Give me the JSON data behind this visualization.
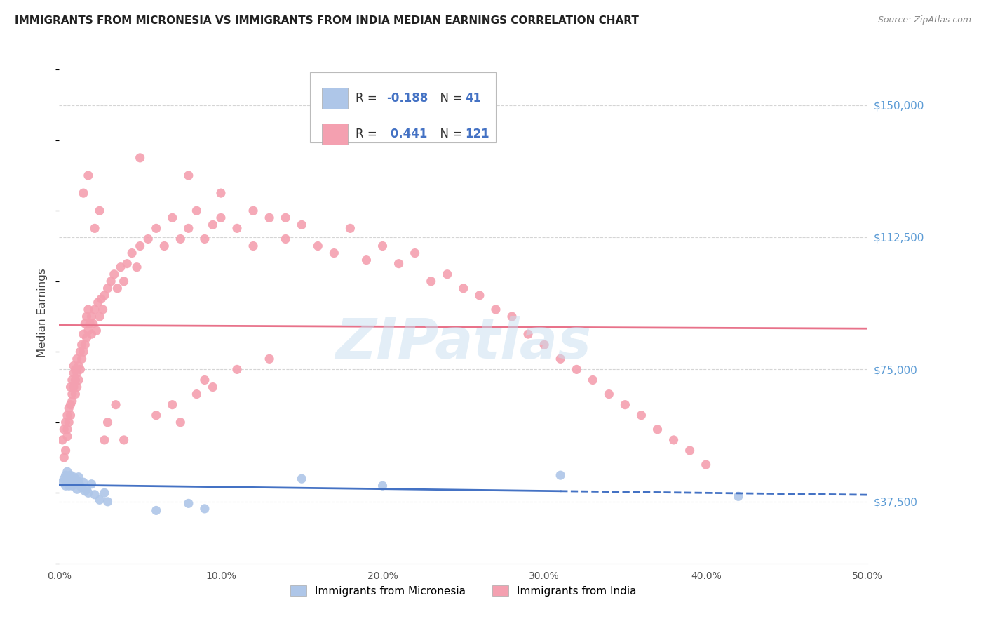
{
  "title": "IMMIGRANTS FROM MICRONESIA VS IMMIGRANTS FROM INDIA MEDIAN EARNINGS CORRELATION CHART",
  "source": "Source: ZipAtlas.com",
  "ylabel": "Median Earnings",
  "xlim": [
    0.0,
    0.5
  ],
  "ylim": [
    20000,
    162000
  ],
  "yticks": [
    37500,
    75000,
    112500,
    150000
  ],
  "ytick_labels": [
    "$37,500",
    "$75,000",
    "$112,500",
    "$150,000"
  ],
  "xticks": [
    0.0,
    0.1,
    0.2,
    0.3,
    0.4,
    0.5
  ],
  "xtick_labels": [
    "0.0%",
    "10.0%",
    "20.0%",
    "30.0%",
    "40.0%",
    "50.0%"
  ],
  "micronesia_R": -0.188,
  "micronesia_N": 41,
  "india_R": 0.441,
  "india_N": 121,
  "micronesia_color": "#aec6e8",
  "india_color": "#f4a0b0",
  "micronesia_line_color": "#4472c4",
  "india_line_color": "#e8728a",
  "background_color": "#ffffff",
  "grid_color": "#d5d5d5",
  "watermark": "ZIPatlas",
  "title_fontsize": 11,
  "axis_label_color": "#5b9bd5",
  "legend_R_color": "#4472c4",
  "micronesia_x": [
    0.002,
    0.003,
    0.004,
    0.004,
    0.005,
    0.005,
    0.006,
    0.006,
    0.006,
    0.007,
    0.007,
    0.007,
    0.008,
    0.008,
    0.008,
    0.009,
    0.009,
    0.01,
    0.01,
    0.011,
    0.011,
    0.012,
    0.012,
    0.013,
    0.014,
    0.015,
    0.016,
    0.017,
    0.018,
    0.02,
    0.022,
    0.025,
    0.028,
    0.03,
    0.06,
    0.08,
    0.09,
    0.15,
    0.2,
    0.31,
    0.42
  ],
  "micronesia_y": [
    43000,
    44000,
    42000,
    45000,
    43500,
    46000,
    42000,
    44000,
    43000,
    45000,
    42500,
    44500,
    43000,
    44000,
    42000,
    44500,
    43000,
    44000,
    42500,
    43500,
    41000,
    43000,
    44500,
    42000,
    41500,
    43000,
    40500,
    41000,
    40000,
    42500,
    39500,
    38000,
    40000,
    37500,
    35000,
    37000,
    35500,
    44000,
    42000,
    45000,
    39000
  ],
  "india_x": [
    0.002,
    0.003,
    0.003,
    0.004,
    0.004,
    0.005,
    0.005,
    0.005,
    0.006,
    0.006,
    0.007,
    0.007,
    0.007,
    0.008,
    0.008,
    0.008,
    0.009,
    0.009,
    0.009,
    0.01,
    0.01,
    0.01,
    0.011,
    0.011,
    0.011,
    0.012,
    0.012,
    0.013,
    0.013,
    0.014,
    0.014,
    0.015,
    0.015,
    0.016,
    0.016,
    0.017,
    0.017,
    0.018,
    0.018,
    0.019,
    0.02,
    0.02,
    0.021,
    0.022,
    0.023,
    0.024,
    0.025,
    0.026,
    0.027,
    0.028,
    0.03,
    0.032,
    0.034,
    0.036,
    0.038,
    0.04,
    0.042,
    0.045,
    0.048,
    0.05,
    0.055,
    0.06,
    0.065,
    0.07,
    0.075,
    0.08,
    0.085,
    0.09,
    0.095,
    0.1,
    0.11,
    0.12,
    0.13,
    0.14,
    0.15,
    0.16,
    0.17,
    0.18,
    0.19,
    0.2,
    0.21,
    0.22,
    0.23,
    0.24,
    0.25,
    0.26,
    0.27,
    0.28,
    0.29,
    0.3,
    0.31,
    0.32,
    0.33,
    0.34,
    0.35,
    0.36,
    0.37,
    0.38,
    0.39,
    0.4,
    0.05,
    0.08,
    0.1,
    0.12,
    0.14,
    0.03,
    0.035,
    0.04,
    0.015,
    0.018,
    0.022,
    0.025,
    0.028,
    0.06,
    0.07,
    0.075,
    0.085,
    0.09,
    0.095,
    0.11,
    0.13
  ],
  "india_y": [
    55000,
    50000,
    58000,
    52000,
    60000,
    56000,
    62000,
    58000,
    64000,
    60000,
    65000,
    62000,
    70000,
    66000,
    72000,
    68000,
    74000,
    70000,
    76000,
    72000,
    68000,
    75000,
    70000,
    74000,
    78000,
    72000,
    76000,
    80000,
    75000,
    82000,
    78000,
    80000,
    85000,
    82000,
    88000,
    84000,
    90000,
    86000,
    92000,
    88000,
    85000,
    90000,
    88000,
    92000,
    86000,
    94000,
    90000,
    95000,
    92000,
    96000,
    98000,
    100000,
    102000,
    98000,
    104000,
    100000,
    105000,
    108000,
    104000,
    110000,
    112000,
    115000,
    110000,
    118000,
    112000,
    115000,
    120000,
    112000,
    116000,
    118000,
    115000,
    110000,
    118000,
    112000,
    116000,
    110000,
    108000,
    115000,
    106000,
    110000,
    105000,
    108000,
    100000,
    102000,
    98000,
    96000,
    92000,
    90000,
    85000,
    82000,
    78000,
    75000,
    72000,
    68000,
    65000,
    62000,
    58000,
    55000,
    52000,
    48000,
    135000,
    130000,
    125000,
    120000,
    118000,
    60000,
    65000,
    55000,
    125000,
    130000,
    115000,
    120000,
    55000,
    62000,
    65000,
    60000,
    68000,
    72000,
    70000,
    75000,
    78000
  ]
}
